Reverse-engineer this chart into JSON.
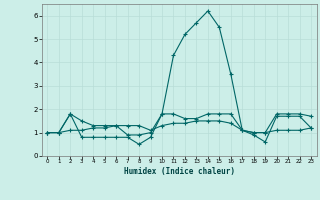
{
  "xlabel": "Humidex (Indice chaleur)",
  "background_color": "#cceee8",
  "grid_color": "#b8ddd8",
  "line_color": "#006666",
  "x": [
    0,
    1,
    2,
    3,
    4,
    5,
    6,
    7,
    8,
    9,
    10,
    11,
    12,
    13,
    14,
    15,
    16,
    17,
    18,
    19,
    20,
    21,
    22,
    23
  ],
  "series1": [
    1.0,
    1.0,
    1.8,
    0.8,
    0.8,
    0.8,
    0.8,
    0.8,
    0.5,
    0.8,
    1.8,
    4.3,
    5.2,
    5.7,
    6.2,
    5.5,
    3.5,
    1.1,
    0.9,
    0.6,
    1.7,
    1.7,
    1.7,
    1.2
  ],
  "series2": [
    1.0,
    1.0,
    1.8,
    1.5,
    1.3,
    1.3,
    1.3,
    0.9,
    0.9,
    1.0,
    1.8,
    1.8,
    1.6,
    1.6,
    1.8,
    1.8,
    1.8,
    1.1,
    1.0,
    1.0,
    1.8,
    1.8,
    1.8,
    1.7
  ],
  "series3": [
    1.0,
    1.0,
    1.1,
    1.1,
    1.2,
    1.2,
    1.3,
    1.3,
    1.3,
    1.1,
    1.3,
    1.4,
    1.4,
    1.5,
    1.5,
    1.5,
    1.4,
    1.1,
    1.0,
    1.0,
    1.1,
    1.1,
    1.1,
    1.2
  ],
  "ylim": [
    0,
    6.5
  ],
  "xlim": [
    -0.5,
    23.5
  ],
  "yticks": [
    0,
    1,
    2,
    3,
    4,
    5,
    6
  ],
  "xticks": [
    0,
    1,
    2,
    3,
    4,
    5,
    6,
    7,
    8,
    9,
    10,
    11,
    12,
    13,
    14,
    15,
    16,
    17,
    18,
    19,
    20,
    21,
    22,
    23
  ],
  "xtick_labels": [
    "0",
    "1",
    "2",
    "3",
    "4",
    "5",
    "6",
    "7",
    "8",
    "9",
    "10",
    "11",
    "12",
    "13",
    "14",
    "15",
    "16",
    "17",
    "18",
    "19",
    "20",
    "21",
    "22",
    "23"
  ]
}
